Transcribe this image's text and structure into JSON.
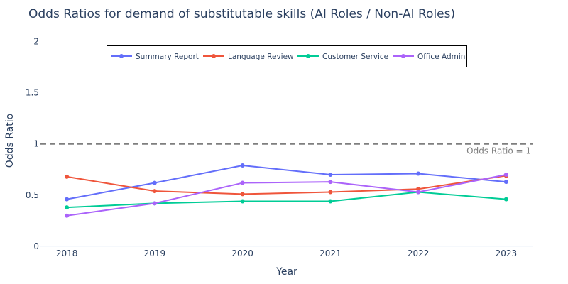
{
  "chart_data": {
    "type": "line",
    "title": "Odds Ratios for demand of substitutable skills (AI Roles / Non-AI Roles)",
    "xlabel": "Year",
    "ylabel": "Odds Ratio",
    "x": [
      2018,
      2019,
      2020,
      2021,
      2022,
      2023
    ],
    "x_tick_labels": [
      "2018",
      "2019",
      "2020",
      "2021",
      "2022",
      "2023"
    ],
    "y_ticks": [
      0,
      0.5,
      1,
      1.5,
      2
    ],
    "y_tick_labels": [
      "0",
      "0.5",
      "1",
      "1.5",
      "2"
    ],
    "ylim": [
      0,
      2.1
    ],
    "xlim": [
      2017.7,
      2023.3
    ],
    "grid": false,
    "legend_position": "top-center",
    "series": [
      {
        "name": "Summary Report",
        "color": "#636efa",
        "values": [
          0.46,
          0.62,
          0.79,
          0.7,
          0.71,
          0.63
        ]
      },
      {
        "name": "Language Review",
        "color": "#ef553b",
        "values": [
          0.68,
          0.54,
          0.51,
          0.53,
          0.56,
          0.69
        ]
      },
      {
        "name": "Customer Service",
        "color": "#00cc96",
        "values": [
          0.38,
          0.42,
          0.44,
          0.44,
          0.53,
          0.46
        ]
      },
      {
        "name": "Office Admin",
        "color": "#ab63fa",
        "values": [
          0.3,
          0.42,
          0.62,
          0.63,
          0.53,
          0.7
        ]
      }
    ],
    "reference_line": {
      "y": 1,
      "label": "Odds Ratio = 1",
      "color": "#7f7f7f",
      "style": "dashed"
    }
  }
}
